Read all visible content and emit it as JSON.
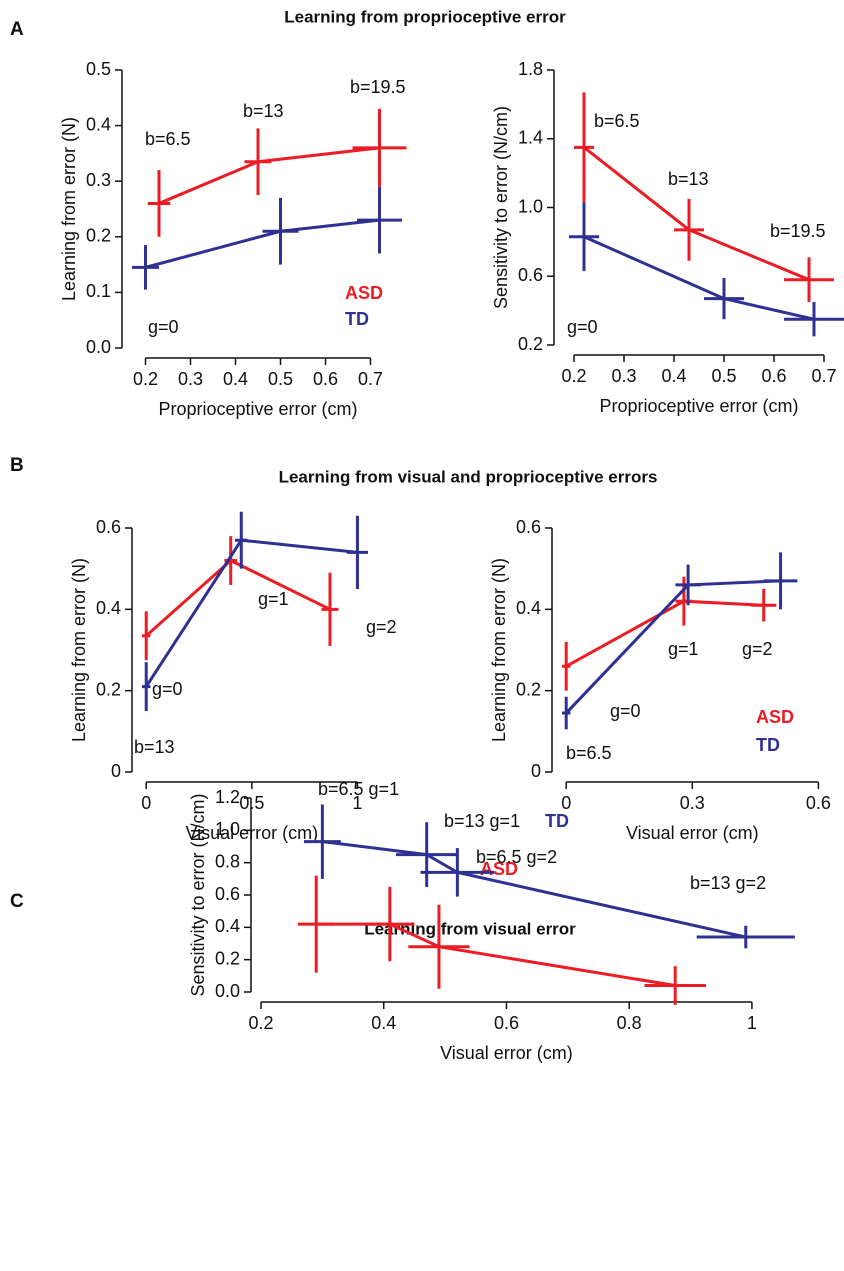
{
  "panels": [
    {
      "label": "A",
      "title": "Learning from proprioceptive error"
    },
    {
      "label": "B",
      "title": "Learning from visual and proprioceptive errors"
    },
    {
      "label": "C",
      "title": "Learning from visual error"
    }
  ],
  "chart_data": [
    {
      "type": "line",
      "xlabel": "Proprioceptive error (cm)",
      "ylabel": "Learning from error (N)",
      "xlim": [
        0.17,
        0.75
      ],
      "ylim": [
        0,
        0.5
      ],
      "xticks": [
        0.2,
        0.3,
        0.4,
        0.5,
        0.6,
        0.7
      ],
      "yticks": [
        {
          "value": 0,
          "label": "0.0"
        },
        0.1,
        0.2,
        0.3,
        0.4,
        0.5
      ],
      "legend": true,
      "series": [
        {
          "name": "ASD",
          "color": "#ec1c24",
          "x": [
            0.23,
            0.45,
            0.72
          ],
          "values": [
            0.26,
            0.335,
            0.36
          ],
          "xerr": [
            0.025,
            0.03,
            0.06
          ],
          "yerr": [
            0.06,
            0.06,
            0.07
          ]
        },
        {
          "name": "TD",
          "color": "#2e3192",
          "x": [
            0.2,
            0.5,
            0.72
          ],
          "values": [
            0.145,
            0.21,
            0.23
          ],
          "xerr": [
            0.03,
            0.04,
            0.05
          ],
          "yerr": [
            0.04,
            0.06,
            0.06
          ]
        }
      ],
      "annotations": [
        "b=6.5",
        "b=13",
        "b=19.5",
        "g=0"
      ]
    },
    {
      "type": "line",
      "xlabel": "Proprioceptive error (cm)",
      "ylabel": "Sensitivity to error (N/cm)",
      "xlim": [
        0.18,
        0.72
      ],
      "ylim": [
        0.2,
        1.8
      ],
      "xticks": [
        0.2,
        0.3,
        0.4,
        0.5,
        0.6,
        0.7
      ],
      "yticks": [
        0.2,
        0.6,
        {
          "value": 1,
          "label": "1.0"
        },
        1.4,
        1.8
      ],
      "legend": false,
      "series": [
        {
          "name": "ASD",
          "color": "#ec1c24",
          "x": [
            0.22,
            0.43,
            0.67
          ],
          "values": [
            1.35,
            0.87,
            0.58
          ],
          "xerr": [
            0.02,
            0.03,
            0.05
          ],
          "yerr": [
            0.32,
            0.18,
            0.13
          ]
        },
        {
          "name": "TD",
          "color": "#2e3192",
          "x": [
            0.22,
            0.5,
            0.68
          ],
          "values": [
            0.83,
            0.47,
            0.35
          ],
          "xerr": [
            0.03,
            0.04,
            0.06
          ],
          "yerr": [
            0.2,
            0.12,
            0.1
          ]
        }
      ],
      "annotations": [
        "b=6.5",
        "b=13",
        "b=19.5",
        "g=0"
      ]
    },
    {
      "type": "line",
      "xlabel": "Visual error (cm)",
      "ylabel": "Learning from error (N)",
      "xlim": [
        -0.02,
        1.05
      ],
      "ylim": [
        0,
        0.6
      ],
      "xticks": [
        0,
        0.5,
        1
      ],
      "yticks": [
        0,
        0.2,
        0.4,
        0.6
      ],
      "legend": false,
      "series": [
        {
          "name": "ASD",
          "color": "#ec1c24",
          "x": [
            0,
            0.4,
            0.87
          ],
          "values": [
            0.335,
            0.52,
            0.4
          ],
          "xerr": [
            0.02,
            0.03,
            0.04
          ],
          "yerr": [
            0.06,
            0.06,
            0.09
          ]
        },
        {
          "name": "TD",
          "color": "#2e3192",
          "x": [
            0,
            0.45,
            1
          ],
          "values": [
            0.21,
            0.57,
            0.54
          ],
          "xerr": [
            0.02,
            0.03,
            0.05
          ],
          "yerr": [
            0.06,
            0.07,
            0.09
          ]
        }
      ],
      "annotations": [
        "g=0",
        "g=1",
        "g=2",
        "b=13"
      ]
    },
    {
      "type": "line",
      "xlabel": "Visual error (cm)",
      "ylabel": "Learning from error (N)",
      "xlim": [
        -0.01,
        0.63
      ],
      "ylim": [
        0,
        0.6
      ],
      "xticks": [
        0,
        0.3,
        0.6
      ],
      "yticks": [
        0,
        0.2,
        0.4,
        0.6
      ],
      "legend": true,
      "series": [
        {
          "name": "ASD",
          "color": "#ec1c24",
          "x": [
            0,
            0.28,
            0.47
          ],
          "values": [
            0.26,
            0.42,
            0.41
          ],
          "xerr": [
            0.01,
            0.02,
            0.03
          ],
          "yerr": [
            0.06,
            0.06,
            0.04
          ]
        },
        {
          "name": "TD",
          "color": "#2e3192",
          "x": [
            0,
            0.29,
            0.51
          ],
          "values": [
            0.145,
            0.46,
            0.47
          ],
          "xerr": [
            0.01,
            0.03,
            0.04
          ],
          "yerr": [
            0.04,
            0.05,
            0.07
          ]
        }
      ],
      "annotations": [
        "g=0",
        "g=1",
        "g=2",
        "b=6.5"
      ]
    },
    {
      "type": "line",
      "xlabel": "Visual error (cm)",
      "ylabel": "Sensitivity to error (N/cm)",
      "xlim": [
        0.2,
        1.08
      ],
      "ylim": [
        0,
        1.2
      ],
      "xticks": [
        0.2,
        0.4,
        0.6,
        0.8,
        1
      ],
      "yticks": [
        {
          "value": 0,
          "label": "0.0"
        },
        0.2,
        0.4,
        0.6,
        0.8,
        {
          "value": 1,
          "label": "1.0"
        },
        1.2
      ],
      "legend": false,
      "series": [
        {
          "name": "ASD",
          "color": "#ec1c24",
          "x": [
            0.29,
            0.41,
            0.49,
            0.875
          ],
          "values": [
            0.42,
            0.42,
            0.28,
            0.04
          ],
          "xerr": [
            0.03,
            0.04,
            0.05,
            0.05
          ],
          "yerr": [
            0.3,
            0.23,
            0.26,
            0.12
          ]
        },
        {
          "name": "TD",
          "color": "#2e3192",
          "x": [
            0.3,
            0.47,
            0.52,
            0.99
          ],
          "values": [
            0.93,
            0.85,
            0.74,
            0.34
          ],
          "xerr": [
            0.03,
            0.05,
            0.06,
            0.08
          ],
          "yerr": [
            0.23,
            0.2,
            0.15,
            0.07
          ]
        }
      ],
      "annotations": [
        "b=6.5 g=1",
        "b=13 g=1",
        "b=6.5 g=2",
        "b=13 g=2"
      ]
    }
  ]
}
